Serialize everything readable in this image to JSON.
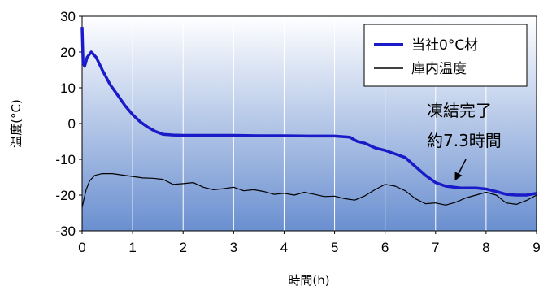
{
  "chart_data": {
    "type": "line",
    "xlabel": "時間(h)",
    "ylabel": "温度(°C)",
    "xlim": [
      0,
      9
    ],
    "ylim": [
      -30,
      30
    ],
    "xticks": [
      "0",
      "1",
      "2",
      "3",
      "4",
      "5",
      "6",
      "7",
      "8",
      "9"
    ],
    "yticks": [
      "30",
      "20",
      "10",
      "0",
      "-10",
      "-20",
      "-30"
    ],
    "grid": "vertical",
    "legend_position": "top-right",
    "background_gradient": [
      "#ffffff",
      "#6a8fd0"
    ],
    "series": [
      {
        "name": "当社0°C材",
        "color": "#1a1ac8",
        "x": [
          0,
          0.02,
          0.05,
          0.1,
          0.18,
          0.28,
          0.4,
          0.55,
          0.7,
          0.85,
          1.0,
          1.15,
          1.3,
          1.45,
          1.6,
          1.8,
          2.0,
          2.5,
          3.0,
          3.5,
          4.0,
          4.5,
          5.0,
          5.3,
          5.45,
          5.6,
          5.8,
          6.0,
          6.2,
          6.4,
          6.6,
          6.8,
          7.0,
          7.2,
          7.5,
          7.8,
          8.0,
          8.2,
          8.4,
          8.6,
          8.8,
          9.0
        ],
        "values": [
          27,
          17,
          16,
          18.5,
          20,
          18.5,
          15,
          11,
          8,
          5,
          2.5,
          0.5,
          -1.0,
          -2.2,
          -3.0,
          -3.2,
          -3.3,
          -3.3,
          -3.3,
          -3.4,
          -3.4,
          -3.5,
          -3.5,
          -3.8,
          -5.0,
          -5.5,
          -6.8,
          -7.5,
          -8.5,
          -9.5,
          -12,
          -14.5,
          -16.5,
          -17.5,
          -18.0,
          -18.0,
          -18.3,
          -19.0,
          -19.8,
          -20.0,
          -20.0,
          -19.5
        ]
      },
      {
        "name": "庫内温度",
        "color": "#000000",
        "x": [
          0,
          0.03,
          0.08,
          0.15,
          0.25,
          0.4,
          0.6,
          0.8,
          1.0,
          1.2,
          1.4,
          1.6,
          1.8,
          2.0,
          2.2,
          2.4,
          2.6,
          2.8,
          3.0,
          3.2,
          3.4,
          3.6,
          3.8,
          4.0,
          4.2,
          4.4,
          4.6,
          4.8,
          5.0,
          5.2,
          5.4,
          5.6,
          5.8,
          6.0,
          6.2,
          6.4,
          6.6,
          6.8,
          7.0,
          7.2,
          7.4,
          7.6,
          7.8,
          8.0,
          8.2,
          8.4,
          8.6,
          8.8,
          9.0
        ],
        "values": [
          -23.5,
          -21.5,
          -18.5,
          -16.0,
          -14.5,
          -14.0,
          -14.0,
          -14.4,
          -14.8,
          -15.2,
          -15.3,
          -15.6,
          -17.0,
          -16.8,
          -16.5,
          -17.8,
          -18.5,
          -18.2,
          -17.8,
          -18.8,
          -18.5,
          -19.0,
          -19.8,
          -19.5,
          -20.0,
          -19.2,
          -19.8,
          -20.4,
          -20.3,
          -21.0,
          -21.4,
          -20.2,
          -18.5,
          -17.0,
          -17.5,
          -18.8,
          -21.0,
          -22.4,
          -22.2,
          -22.8,
          -22.0,
          -20.8,
          -20.0,
          -19.2,
          -20.0,
          -22.2,
          -22.6,
          -21.5,
          -20.0
        ]
      }
    ],
    "annotation": {
      "lines": [
        "凍結完了",
        "約7.3時間"
      ],
      "arrow_to": [
        7.3,
        -16.5
      ]
    }
  }
}
